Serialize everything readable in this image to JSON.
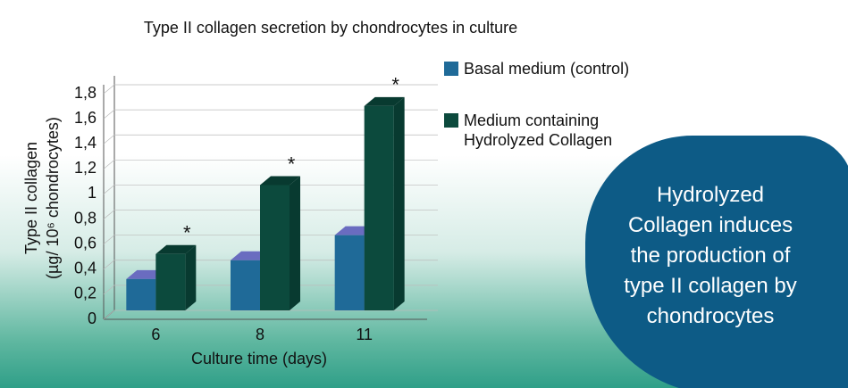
{
  "chart_data": {
    "type": "bar3d",
    "title": "Type II collagen secretion by chondrocytes in culture",
    "x_label": "Culture time (days)",
    "y_label": [
      "Type II collagen",
      "(µg/ 10⁶ chondrocytes)"
    ],
    "categories": [
      "6",
      "8",
      "11"
    ],
    "series": [
      {
        "name": "Basal medium (control)",
        "color": "#1f6a98",
        "top_color": "#6a6cc0",
        "values": [
          0.25,
          0.4,
          0.6
        ]
      },
      {
        "name": "Medium containing Hydrolyzed Collagen",
        "color": "#0c4a3d",
        "top_color": "#083a30",
        "values": [
          0.45,
          1.0,
          1.63
        ]
      }
    ],
    "significance_markers": [
      "*",
      "*",
      "*"
    ],
    "ylim": [
      0,
      1.8
    ],
    "yticks": [
      0,
      {
        "value": 0.2,
        "label": "0,2"
      },
      {
        "value": 0.4,
        "label": "0,4"
      },
      {
        "value": 0.6,
        "label": "0,6"
      },
      {
        "value": 0.8,
        "label": "0,8"
      },
      1,
      {
        "value": 1.2,
        "label": "1,2"
      },
      {
        "value": 1.4,
        "label": "1,4"
      },
      {
        "value": 1.6,
        "label": "1,6"
      },
      {
        "value": 1.8,
        "label": "1,8"
      }
    ],
    "grid": true
  },
  "callout": {
    "text": "Hydrolyzed Collagen induces the production of type II collagen by chondrocytes"
  }
}
